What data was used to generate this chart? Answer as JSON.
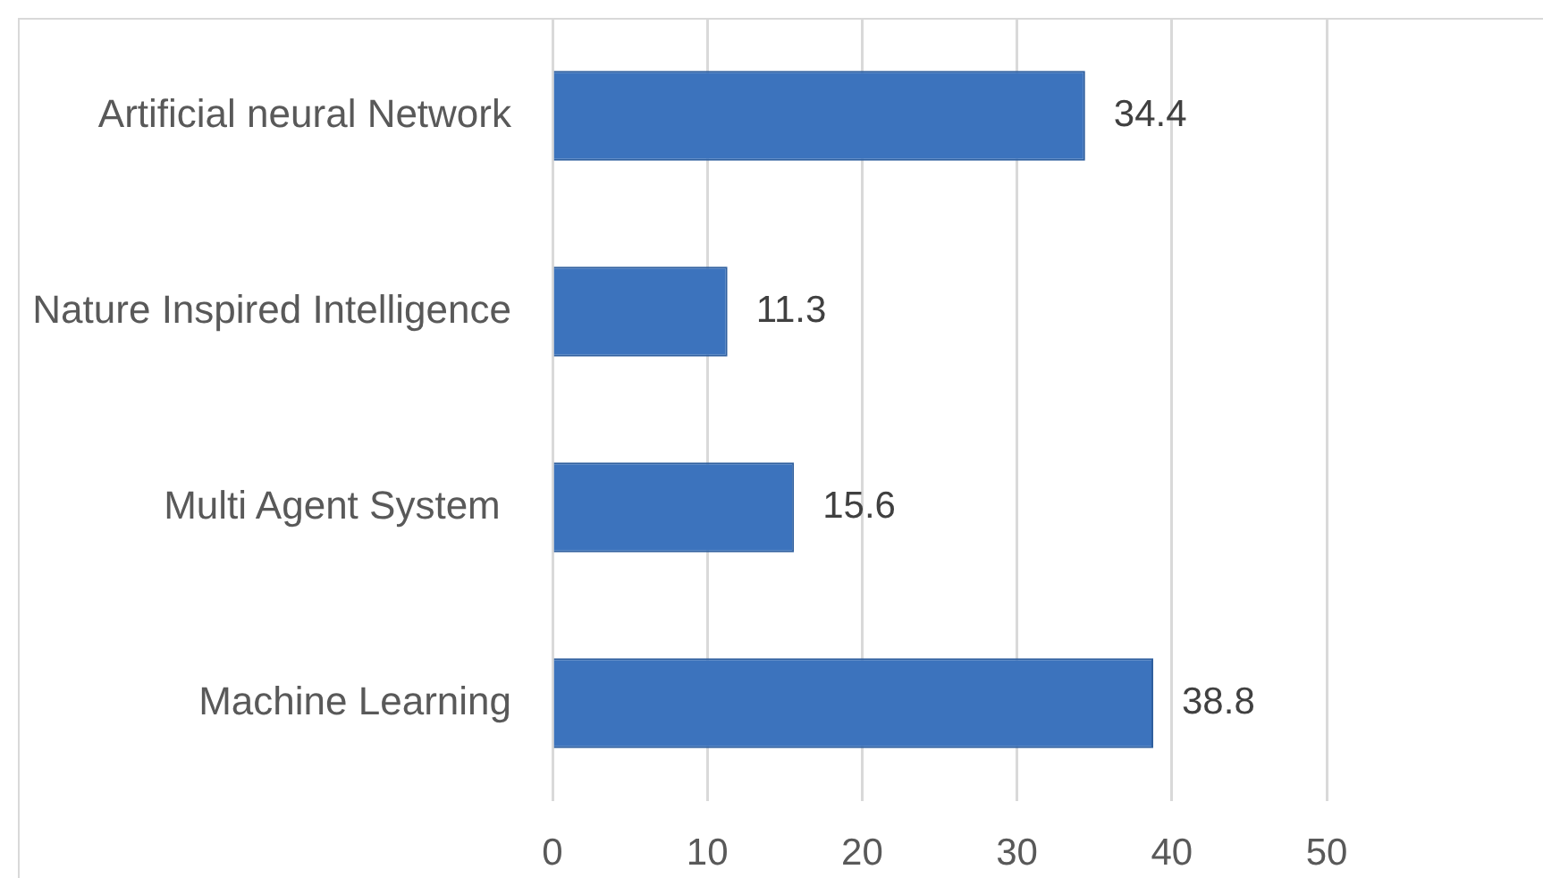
{
  "chart_data": {
    "type": "bar",
    "orientation": "horizontal",
    "categories": [
      "Artificial neural Network",
      "Nature Inspired Intelligence",
      "Multi Agent System ",
      "Machine Learning"
    ],
    "values": [
      34.4,
      11.3,
      15.6,
      38.8
    ],
    "color": "#3c73bd",
    "xlim": [
      0,
      50
    ],
    "xticks": [
      0,
      10,
      20,
      30,
      40,
      50
    ],
    "grid": "x",
    "data_labels": true
  }
}
